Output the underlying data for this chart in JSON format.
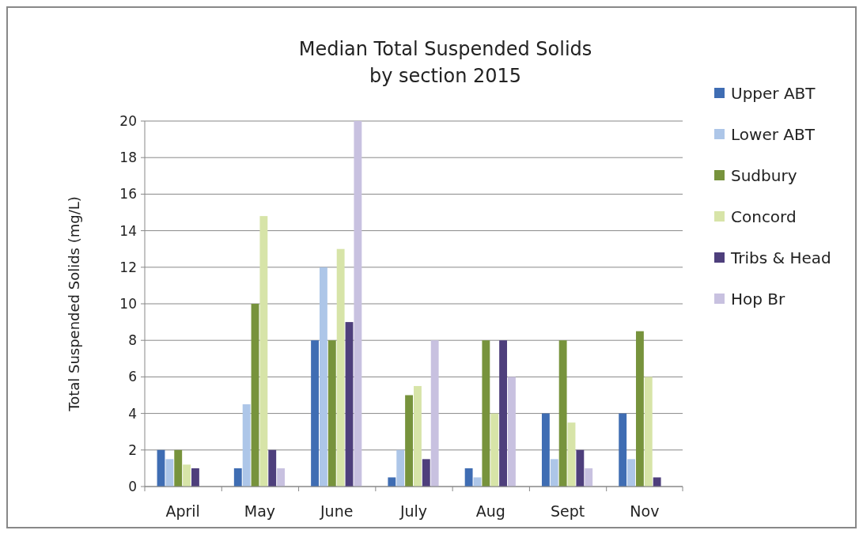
{
  "chart_data": {
    "type": "bar",
    "title": "Median Total Suspended Solids\nby section 2015",
    "ylabel": "Total Suspended Solids (mg/L)",
    "categories": [
      "April",
      "May",
      "June",
      "July",
      "Aug",
      "Sept",
      "Nov"
    ],
    "series": [
      {
        "name": "Upper ABT",
        "color": "#3f6db3",
        "values": [
          2,
          1,
          8,
          0.5,
          1,
          4,
          4
        ]
      },
      {
        "name": "Lower ABT",
        "color": "#adc6e8",
        "values": [
          1.5,
          4.5,
          12,
          2,
          0.5,
          1.5,
          1.5
        ]
      },
      {
        "name": "Sudbury",
        "color": "#77933c",
        "values": [
          2,
          10,
          8,
          5,
          8,
          8,
          8.5
        ]
      },
      {
        "name": "Concord",
        "color": "#d7e4a8",
        "values": [
          1.2,
          14.8,
          13,
          5.5,
          4,
          3.5,
          6
        ]
      },
      {
        "name": "Tribs & Head",
        "color": "#4e3f7c",
        "values": [
          1,
          2,
          9,
          1.5,
          8,
          2,
          0.5
        ]
      },
      {
        "name": "Hop Br",
        "color": "#c8c1e0",
        "values": [
          null,
          1,
          20,
          8,
          6,
          1,
          null
        ]
      }
    ],
    "ylim": [
      0,
      20
    ],
    "yticks": [
      0,
      2,
      4,
      6,
      8,
      10,
      12,
      14,
      16,
      18,
      20
    ],
    "grid": "y",
    "legend": "right"
  }
}
